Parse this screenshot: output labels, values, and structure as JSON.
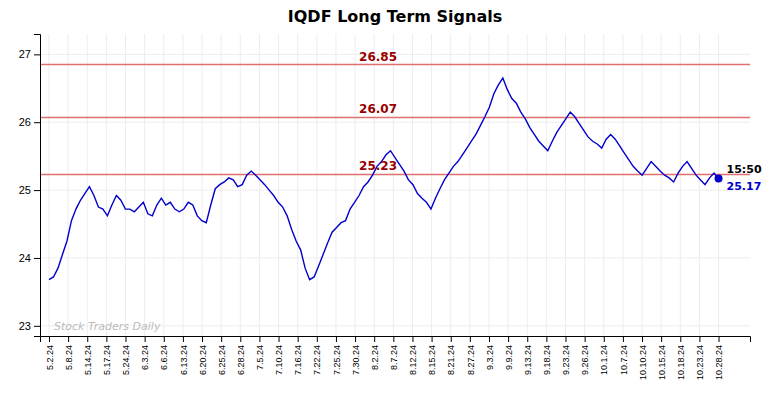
{
  "chart_data": {
    "type": "line",
    "title": "IQDF Long Term Signals",
    "color": "#0000cc",
    "grid": true,
    "annotations": [
      "Stock Traders Daily",
      "15:50"
    ],
    "hlines": [
      26.85,
      26.07,
      25.23
    ],
    "values": [
      23.68,
      23.72,
      23.85,
      24.05,
      24.25,
      24.55,
      24.72,
      24.85,
      24.95,
      25.05,
      24.92,
      24.75,
      24.72,
      24.62,
      24.78,
      24.92,
      24.85,
      24.72,
      24.72,
      24.68,
      24.75,
      24.82,
      24.65,
      24.62,
      24.78,
      24.88,
      24.78,
      24.82,
      24.72,
      24.68,
      24.72,
      24.82,
      24.78,
      24.62,
      24.55,
      24.52,
      24.78,
      25.02,
      25.08,
      25.12,
      25.18,
      25.15,
      25.05,
      25.08,
      25.22,
      25.28,
      25.22,
      25.15,
      25.08,
      25.0,
      24.92,
      24.82,
      24.75,
      24.62,
      24.42,
      24.25,
      24.12,
      23.85,
      23.68,
      23.72,
      23.88,
      24.05,
      24.22,
      24.38,
      24.45,
      24.52,
      24.55,
      24.72,
      24.82,
      24.92,
      25.05,
      25.12,
      25.22,
      25.35,
      25.42,
      25.52,
      25.58,
      25.48,
      25.38,
      25.28,
      25.15,
      25.08,
      24.95,
      24.88,
      24.82,
      24.72,
      24.88,
      25.02,
      25.15,
      25.25,
      25.35,
      25.42,
      25.52,
      25.62,
      25.72,
      25.82,
      25.95,
      26.08,
      26.22,
      26.42,
      26.55,
      26.65,
      26.48,
      26.35,
      26.28,
      26.15,
      26.05,
      25.92,
      25.82,
      25.72,
      25.65,
      25.58,
      25.72,
      25.85,
      25.95,
      26.05,
      26.15,
      26.08,
      25.98,
      25.88,
      25.78,
      25.72,
      25.68,
      25.62,
      25.75,
      25.82,
      25.75,
      25.65,
      25.55,
      25.45,
      25.35,
      25.28,
      25.22,
      25.32,
      25.42,
      25.35,
      25.28,
      25.22,
      25.18,
      25.12,
      25.25,
      25.35,
      25.42,
      25.32,
      25.22,
      25.15,
      25.08,
      25.18,
      25.25,
      25.17
    ],
    "xlim": [
      -2,
      156
    ],
    "xticks": [
      {
        "value": 0,
        "label": "5.2.24"
      },
      {
        "value": 4.2571,
        "label": "5.8.24"
      },
      {
        "value": 8.5143,
        "label": "5.14.24"
      },
      {
        "value": 12.7714,
        "label": "5.17.24"
      },
      {
        "value": 17.0286,
        "label": "5.24.24"
      },
      {
        "value": 21.2857,
        "label": "6.3.24"
      },
      {
        "value": 25.5429,
        "label": "6.6.24"
      },
      {
        "value": 29.8,
        "label": "6.13.24"
      },
      {
        "value": 34.0571,
        "label": "6.20.24"
      },
      {
        "value": 38.3143,
        "label": "6.25.24"
      },
      {
        "value": 42.5714,
        "label": "6.28.24"
      },
      {
        "value": 46.8286,
        "label": "7.5.24"
      },
      {
        "value": 51.0857,
        "label": "7.10.24"
      },
      {
        "value": 55.3429,
        "label": "7.16.24"
      },
      {
        "value": 59.6,
        "label": "7.22.24"
      },
      {
        "value": 63.8571,
        "label": "7.25.24"
      },
      {
        "value": 68.1143,
        "label": "7.30.24"
      },
      {
        "value": 72.3714,
        "label": "8.2.24"
      },
      {
        "value": 76.6286,
        "label": "8.7.24"
      },
      {
        "value": 80.8857,
        "label": "8.12.24"
      },
      {
        "value": 85.1429,
        "label": "8.15.24"
      },
      {
        "value": 89.4,
        "label": "8.21.24"
      },
      {
        "value": 93.6571,
        "label": "8.27.24"
      },
      {
        "value": 97.9143,
        "label": "9.3.24"
      },
      {
        "value": 102.1714,
        "label": "9.9.24"
      },
      {
        "value": 106.4286,
        "label": "9.13.24"
      },
      {
        "value": 110.6857,
        "label": "9.18.24"
      },
      {
        "value": 114.9429,
        "label": "9.23.24"
      },
      {
        "value": 119.2,
        "label": "9.26.24"
      },
      {
        "value": 123.4571,
        "label": "10.1.24"
      },
      {
        "value": 127.7143,
        "label": "10.7.24"
      },
      {
        "value": 131.9714,
        "label": "10.10.24"
      },
      {
        "value": 136.2286,
        "label": "10.15.24"
      },
      {
        "value": 140.4857,
        "label": "10.18.24"
      },
      {
        "value": 144.7429,
        "label": "10.23.24"
      },
      {
        "value": 149,
        "label": "10.28.24"
      }
    ],
    "ylim": [
      22.85,
      27.3
    ],
    "yticks": [
      23,
      24,
      25,
      26,
      27
    ]
  }
}
